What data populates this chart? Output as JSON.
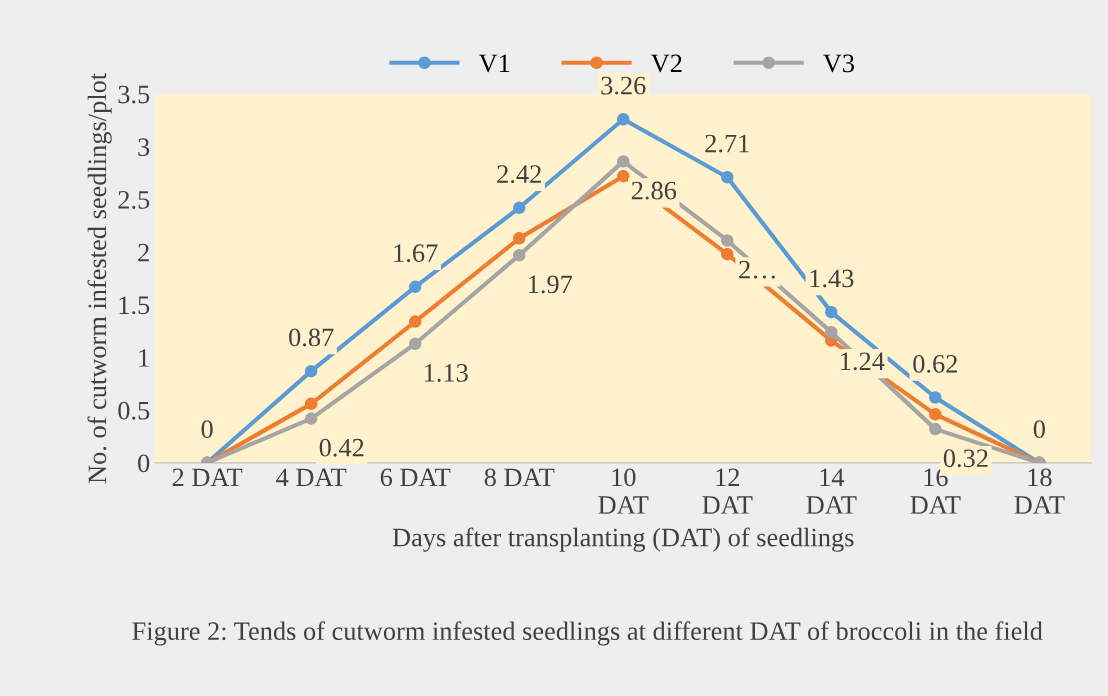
{
  "chart_data": {
    "type": "line",
    "xlabel": "Days after transplanting (DAT) of seedlings",
    "ylabel": "No. of cutworm infested seedlings/plot",
    "categories": [
      "2 DAT",
      "4 DAT",
      "6 DAT",
      "8 DAT",
      "10\nDAT",
      "12\nDAT",
      "14\nDAT",
      "16\nDAT",
      "18\nDAT"
    ],
    "series": [
      {
        "name": "V1",
        "color": "#5b9bd5",
        "values": [
          0,
          0.87,
          1.67,
          2.42,
          3.26,
          2.71,
          1.43,
          0.62,
          0
        ],
        "value_labels": [
          "0",
          "0.87",
          "1.67",
          "2.42",
          "3.26",
          "2.71",
          "1.43",
          "0.62",
          "0"
        ]
      },
      {
        "name": "V2",
        "color": "#ed7d31",
        "values": [
          0,
          0.56,
          1.34,
          2.13,
          2.72,
          1.98,
          1.16,
          0.46,
          0
        ]
      },
      {
        "name": "V3",
        "color": "#a5a5a5",
        "values": [
          0,
          0.42,
          1.13,
          1.97,
          2.86,
          2.11,
          1.24,
          0.32,
          0
        ],
        "value_labels": [
          null,
          "0.42",
          "1.13",
          "1.97",
          "2.86",
          "2…",
          "1.24",
          "0.32",
          null
        ]
      }
    ],
    "ylim": [
      0,
      3.5
    ],
    "yticks": [
      0,
      0.5,
      1,
      1.5,
      2,
      2.5,
      3,
      3.5
    ],
    "legend": "top",
    "marker": "circle",
    "line_style": "solid",
    "grid": false,
    "annotations": [
      "Figure 2: Tends of cutworm infested seedlings at different DAT of broccoli in the field"
    ]
  }
}
